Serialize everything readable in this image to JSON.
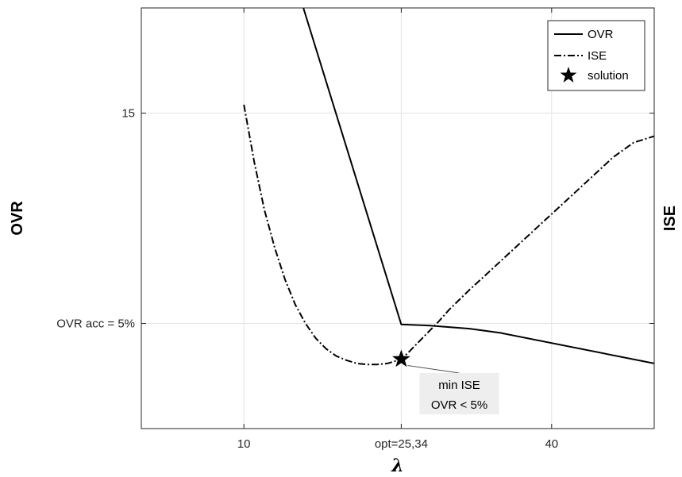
{
  "chart_data": {
    "type": "line",
    "xlabel": "λ",
    "ylabel_left": "OVR",
    "ylabel_right": "ISE",
    "xlim": [
      0,
      50
    ],
    "ylim": [
      0,
      20
    ],
    "x_ticks": [
      {
        "value": 10,
        "label": "10"
      },
      {
        "value": 25.34,
        "label": "opt=25,34"
      },
      {
        "value": 40,
        "label": "40"
      }
    ],
    "y_ticks": [
      {
        "value": 5,
        "label": "OVR acc = 5%"
      },
      {
        "value": 15,
        "label": "15"
      }
    ],
    "grid": true,
    "legend_position": "top-right",
    "series": [
      {
        "name": "OVR",
        "style": "solid",
        "x": [
          15.8,
          25.34,
          28,
          32,
          35,
          50
        ],
        "y": [
          20,
          4.95,
          4.9,
          4.75,
          4.55,
          3.1
        ]
      },
      {
        "name": "ISE",
        "style": "dash-dot",
        "x": [
          10,
          11,
          12,
          13,
          14,
          15,
          16,
          17,
          18,
          19,
          20,
          21,
          22,
          23,
          24,
          25,
          25.34,
          26,
          27,
          28,
          29,
          30,
          32,
          34,
          36,
          38,
          40,
          42,
          44,
          46,
          48,
          50
        ],
        "y": [
          15.4,
          12.7,
          10.4,
          8.6,
          7.1,
          5.9,
          5.0,
          4.3,
          3.8,
          3.45,
          3.25,
          3.1,
          3.05,
          3.05,
          3.1,
          3.25,
          3.3,
          3.6,
          4.1,
          4.6,
          5.1,
          5.65,
          6.6,
          7.5,
          8.4,
          9.3,
          10.2,
          11.1,
          12.0,
          12.9,
          13.6,
          13.9
        ]
      }
    ],
    "solution": {
      "name": "solution",
      "x": 25.34,
      "y": 3.3
    },
    "annotation": {
      "lines": [
        "min ISE",
        "OVR < 5%"
      ],
      "x": 31,
      "y": 1.7
    }
  }
}
